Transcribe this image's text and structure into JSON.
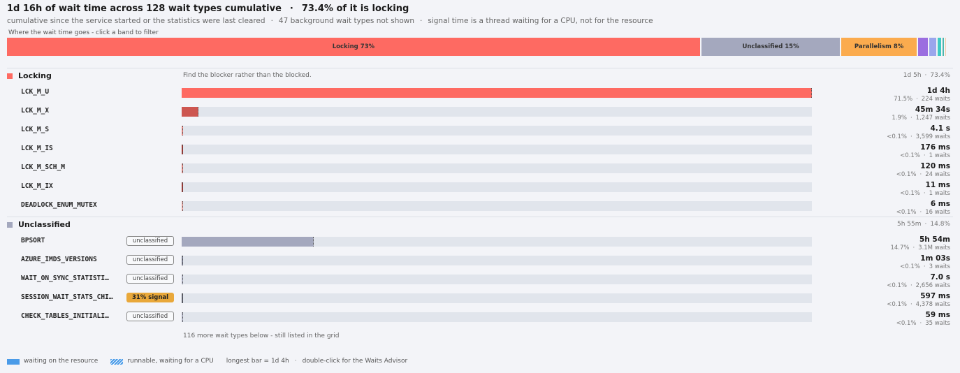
{
  "header": {
    "title": "1d 16h of wait time across 128 wait types cumulative",
    "separator": "·",
    "headline": "73.4% of it is locking",
    "notes": [
      "cumulative since the service started or the statistics were last cleared",
      "47 background wait types not shown",
      "signal time is a thread waiting for a CPU, not for the resource"
    ]
  },
  "band_hint": "Where the wait time goes - click a band to filter",
  "bands": [
    {
      "label": "Locking 73%",
      "share": 73.4,
      "color": "#fe6a62"
    },
    {
      "label": "Unclassified 15%",
      "share": 14.8,
      "color": "#a4a8be"
    },
    {
      "label": "Parallelism 8%",
      "share": 8.1,
      "color": "#fbab4e"
    },
    {
      "share": 1.2,
      "color": "#9b6ee0"
    },
    {
      "share": 0.9,
      "color": "#9aa6ec"
    },
    {
      "share": 0.5,
      "color": "#3fcac3"
    },
    {
      "share": 0.3,
      "color": "#4db6ac"
    },
    {
      "share": 0.15,
      "color": "#f3c9a3"
    }
  ],
  "groups": [
    {
      "name": "Locking",
      "color": "#fe6a62",
      "hint": "Find the blocker rather than the blocked.",
      "total": "1d 5h",
      "share": "73.4%",
      "rows": [
        {
          "name": "LCK_M_U",
          "time": "1d 4h",
          "share": "71.5%",
          "waits": "224 waits",
          "bar": 1,
          "color": "#fe6a62"
        },
        {
          "name": "LCK_M_X",
          "time": "45m 34s",
          "share": "1.9%",
          "waits": "1,247 waits",
          "bar": 0.027,
          "color": "#cd5650"
        },
        {
          "name": "LCK_M_S",
          "time": "4.1 s",
          "share": "<0.1%",
          "waits": "3,599 waits",
          "bar": 4e-05,
          "color": "#f08a84"
        },
        {
          "name": "LCK_M_IS",
          "time": "176 ms",
          "share": "<0.1%",
          "waits": "1 waits",
          "bar": 1.7e-06,
          "color": "#a8302b"
        },
        {
          "name": "LCK_M_SCH_M",
          "time": "120 ms",
          "share": "<0.1%",
          "waits": "24 waits",
          "bar": 1.2e-06,
          "color": "#f08a84"
        },
        {
          "name": "LCK_M_IX",
          "time": "11 ms",
          "share": "<0.1%",
          "waits": "1 waits",
          "bar": 1e-07,
          "color": "#a8302b"
        },
        {
          "name": "DEADLOCK_ENUM_MUTEX",
          "time": "6 ms",
          "share": "<0.1%",
          "waits": "16 waits",
          "bar": 6e-08,
          "color": "#f5a9a4"
        }
      ]
    },
    {
      "name": "Unclassified",
      "color": "#a4a8be",
      "hint": null,
      "total": "5h 55m",
      "share": "14.8%",
      "rows": [
        {
          "name": "BPSORT",
          "tag": "unclassified",
          "time": "5h 54m",
          "share": "14.7%",
          "waits": "3.1M waits",
          "bar": 0.21,
          "color": "#a4a8be"
        },
        {
          "name": "AZURE_IMDS_VERSIONS",
          "tag": "unclassified",
          "time": "1m 03s",
          "share": "<0.1%",
          "waits": "3 waits",
          "bar": 0.000625,
          "color": "#7d8196"
        },
        {
          "name": "WAIT_ON_SYNC_STATISTI…",
          "tag": "unclassified",
          "time": "7.0 s",
          "share": "<0.1%",
          "waits": "2,656 waits",
          "bar": 7e-05,
          "color": "#b3b7cb"
        },
        {
          "name": "SESSION_WAIT_STATS_CHI…",
          "tag": "31% signal",
          "tag_color": "#e9a83a",
          "time": "597 ms",
          "share": "<0.1%",
          "waits": "4,378 waits",
          "bar": 5.9e-06,
          "color": "#5d6070"
        },
        {
          "name": "CHECK_TABLES_INITIALI…",
          "tag": "unclassified",
          "time": "59 ms",
          "share": "<0.1%",
          "waits": "35 waits",
          "bar": 6e-07,
          "color": "#b3b7cb"
        }
      ]
    }
  ],
  "more": "116 more wait types below - still listed in the grid",
  "legend": [
    {
      "label": "waiting on the resource",
      "color": "#4a9be8"
    },
    {
      "label": "runnable, waiting for a CPU",
      "color": "#4a9be8",
      "hatched": true
    },
    {
      "label": "longest bar = 1d 4h"
    },
    {
      "label": "double-click for the Waits Advisor"
    }
  ]
}
